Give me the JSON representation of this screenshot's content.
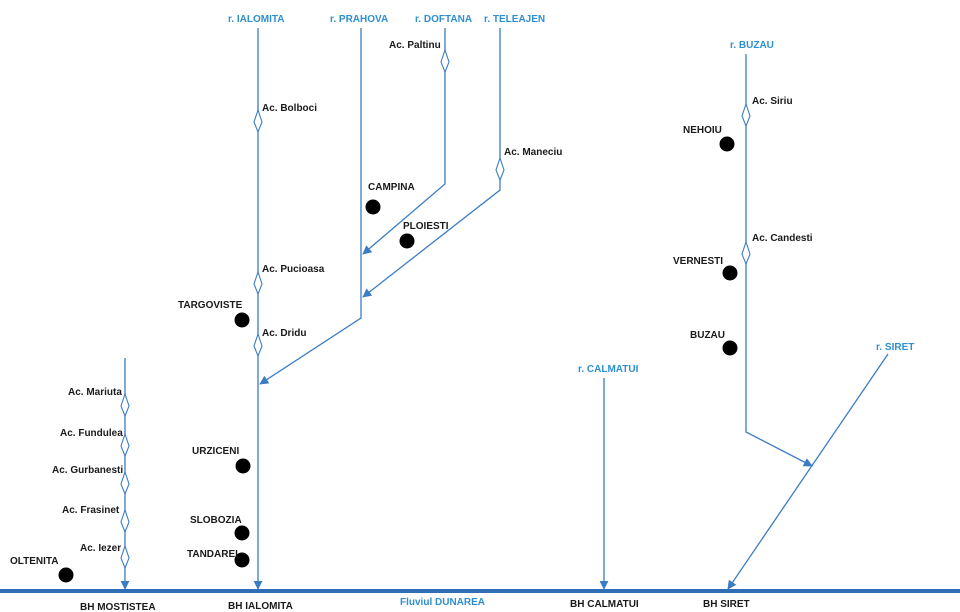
{
  "colors": {
    "river": "#3b7dc4",
    "danube": "#2f6db5",
    "label_blue": "#2f8fd0",
    "city": "#000000",
    "text": "#1a1a1a"
  },
  "danube_label": "Fluviul DUNAREA",
  "rivers": [
    {
      "id": "ialomita",
      "label": "r. IALOMITA"
    },
    {
      "id": "prahova",
      "label": "r. PRAHOVA"
    },
    {
      "id": "doftana",
      "label": "r. DOFTANA"
    },
    {
      "id": "teleajen",
      "label": "r. TELEAJEN"
    },
    {
      "id": "buzau",
      "label": "r. BUZAU"
    },
    {
      "id": "calmatui",
      "label": "r. CALMATUI"
    },
    {
      "id": "siret",
      "label": "r. SIRET"
    }
  ],
  "reservoirs": [
    {
      "id": "paltinu",
      "label": "Ac. Paltinu"
    },
    {
      "id": "bolboci",
      "label": "Ac. Bolboci"
    },
    {
      "id": "maneciu",
      "label": "Ac. Maneciu"
    },
    {
      "id": "pucioasa",
      "label": "Ac. Pucioasa"
    },
    {
      "id": "dridu",
      "label": "Ac. Dridu"
    },
    {
      "id": "siriu",
      "label": "Ac. Siriu"
    },
    {
      "id": "candesti",
      "label": "Ac. Candesti"
    },
    {
      "id": "mariuta",
      "label": "Ac. Mariuta"
    },
    {
      "id": "fundulea",
      "label": "Ac. Fundulea"
    },
    {
      "id": "gurbanesti",
      "label": "Ac. Gurbanesti"
    },
    {
      "id": "frasinet",
      "label": "Ac. Frasinet"
    },
    {
      "id": "iezer",
      "label": "Ac. Iezer"
    }
  ],
  "cities": [
    {
      "id": "campina",
      "label": "CAMPINA"
    },
    {
      "id": "ploiesti",
      "label": "PLOIESTI"
    },
    {
      "id": "targoviste",
      "label": "TARGOVISTE"
    },
    {
      "id": "urziceni",
      "label": "URZICENI"
    },
    {
      "id": "slobozia",
      "label": "SLOBOZIA"
    },
    {
      "id": "tandarei",
      "label": "TANDAREI"
    },
    {
      "id": "oltenita",
      "label": "OLTENITA"
    },
    {
      "id": "nehoiu",
      "label": "NEHOIU"
    },
    {
      "id": "vernesti",
      "label": "VERNESTI"
    },
    {
      "id": "buzau_city",
      "label": "BUZAU"
    }
  ],
  "basins": [
    {
      "id": "mostistea",
      "label": "BH MOSTISTEA"
    },
    {
      "id": "ialomita",
      "label": "BH IALOMITA"
    },
    {
      "id": "calmatui",
      "label": "BH CALMATUI"
    },
    {
      "id": "siret",
      "label": "BH SIRET"
    }
  ]
}
